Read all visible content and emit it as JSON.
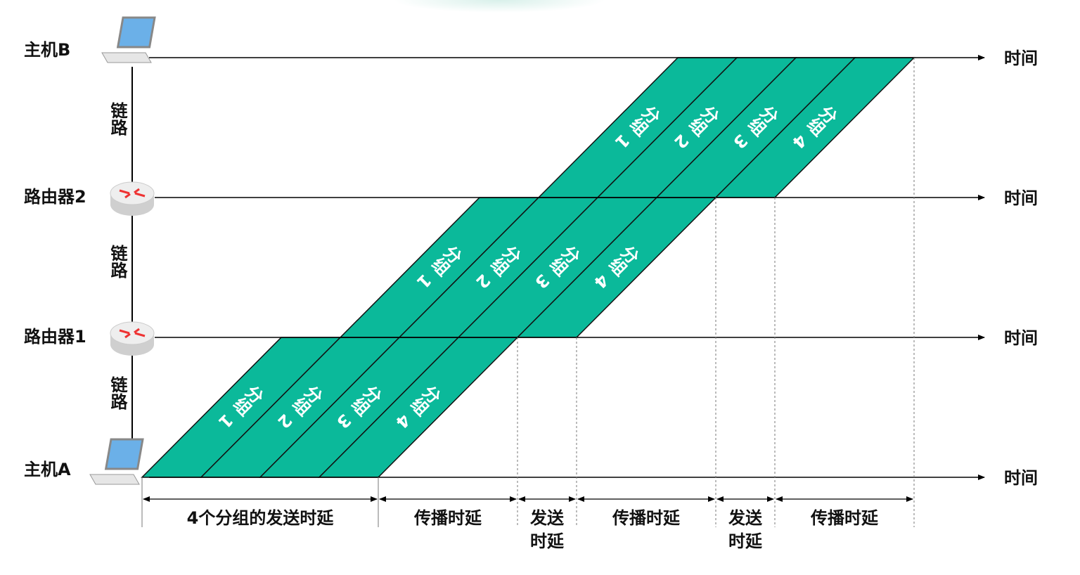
{
  "nodes": [
    {
      "label": "主机B",
      "axis": "时间"
    },
    {
      "label": "路由器2",
      "axis": "时间"
    },
    {
      "label": "路由器1",
      "axis": "时间"
    },
    {
      "label": "主机A",
      "axis": "时间"
    }
  ],
  "links": [
    {
      "label": "链路"
    },
    {
      "label": "链路"
    },
    {
      "label": "链路"
    }
  ],
  "hops": [
    {
      "packets": [
        {
          "label": "分组",
          "number": "1"
        },
        {
          "label": "分组",
          "number": "2"
        },
        {
          "label": "分组",
          "number": "3"
        },
        {
          "label": "分组",
          "number": "4"
        }
      ]
    },
    {
      "packets": [
        {
          "label": "分组",
          "number": "1"
        },
        {
          "label": "分组",
          "number": "2"
        },
        {
          "label": "分组",
          "number": "3"
        },
        {
          "label": "分组",
          "number": "4"
        }
      ]
    },
    {
      "packets": [
        {
          "label": "分组",
          "number": "1"
        },
        {
          "label": "分组",
          "number": "2"
        },
        {
          "label": "分组",
          "number": "3"
        },
        {
          "label": "分组",
          "number": "4"
        }
      ]
    }
  ],
  "delays": [
    {
      "lines": [
        "4个分组的发送时延"
      ]
    },
    {
      "lines": [
        "传播时延"
      ]
    },
    {
      "lines": [
        "发送",
        "时延"
      ]
    },
    {
      "lines": [
        "传播时延"
      ]
    },
    {
      "lines": [
        "发送",
        "时延"
      ]
    },
    {
      "lines": [
        "传播时延"
      ]
    }
  ]
}
